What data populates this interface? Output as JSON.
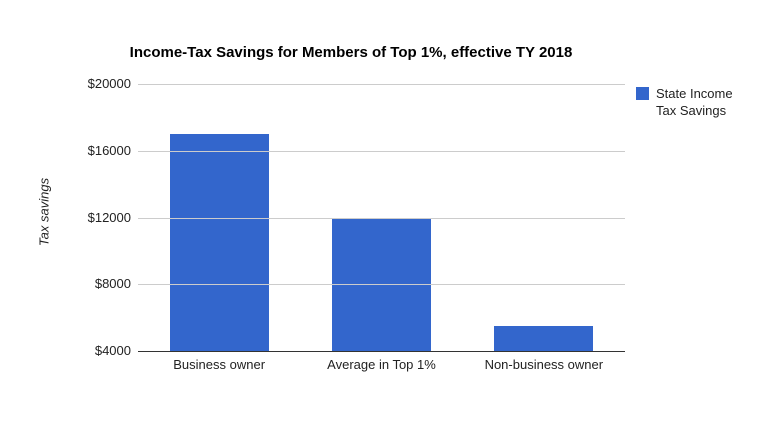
{
  "chart_data": {
    "type": "bar",
    "title": "Income-Tax Savings for Members of Top 1%, effective TY 2018",
    "ylabel": "Tax savings",
    "xlabel": "",
    "categories": [
      "Business owner",
      "Average in Top 1%",
      "Non-business owner"
    ],
    "series": [
      {
        "name": "State Income Tax Savings",
        "values": [
          17000,
          12000,
          5500
        ],
        "color": "#3366cc"
      }
    ],
    "legend_lines": [
      "State Income",
      "Tax Savings"
    ],
    "legend_position": "right",
    "ylim": [
      4000,
      20000
    ],
    "yticks": [
      {
        "value": 4000,
        "label": "$4000"
      },
      {
        "value": 8000,
        "label": "$8000"
      },
      {
        "value": 12000,
        "label": "$12000"
      },
      {
        "value": 16000,
        "label": "$16000"
      },
      {
        "value": 20000,
        "label": "$20000"
      }
    ],
    "grid": true,
    "colors": {
      "gridline": "#cccccc",
      "axis": "#333333",
      "text": "#222222",
      "title": "#000000",
      "background": "#ffffff"
    }
  }
}
